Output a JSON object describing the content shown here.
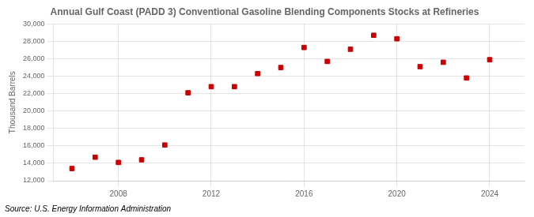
{
  "chart_data": {
    "type": "scatter",
    "title": "Annual Gulf Coast (PADD 3) Conventional Gasoline Blending Components Stocks at Refineries",
    "ylabel": "Thousand Barrels",
    "source": "Source: U.S. Energy Information Administration",
    "x": [
      2006,
      2007,
      2008,
      2009,
      2010,
      2011,
      2012,
      2013,
      2014,
      2015,
      2016,
      2017,
      2018,
      2019,
      2020,
      2021,
      2022,
      2023,
      2024
    ],
    "values": [
      13400,
      14700,
      14100,
      14400,
      16100,
      22100,
      22800,
      22800,
      24300,
      25000,
      27300,
      25700,
      27100,
      28700,
      28300,
      25100,
      25600,
      23800,
      25900
    ],
    "color": "#cc0000",
    "marker": "square",
    "xlim": [
      2005.2,
      2025.5
    ],
    "xticks": [
      2008,
      2012,
      2016,
      2020,
      2024
    ],
    "ylim": [
      12000,
      30000
    ],
    "yticks": [
      {
        "value": 12000,
        "label": "12,000"
      },
      {
        "value": 14000,
        "label": "14,000"
      },
      {
        "value": 16000,
        "label": "16,000"
      },
      {
        "value": 18000,
        "label": "18,000"
      },
      {
        "value": 20000,
        "label": "20,000"
      },
      {
        "value": 22000,
        "label": "22,000"
      },
      {
        "value": 24000,
        "label": "24,000"
      },
      {
        "value": 26000,
        "label": "26,000"
      },
      {
        "value": 28000,
        "label": "28,000"
      },
      {
        "value": 30000,
        "label": "30,000"
      }
    ],
    "grid": true
  }
}
